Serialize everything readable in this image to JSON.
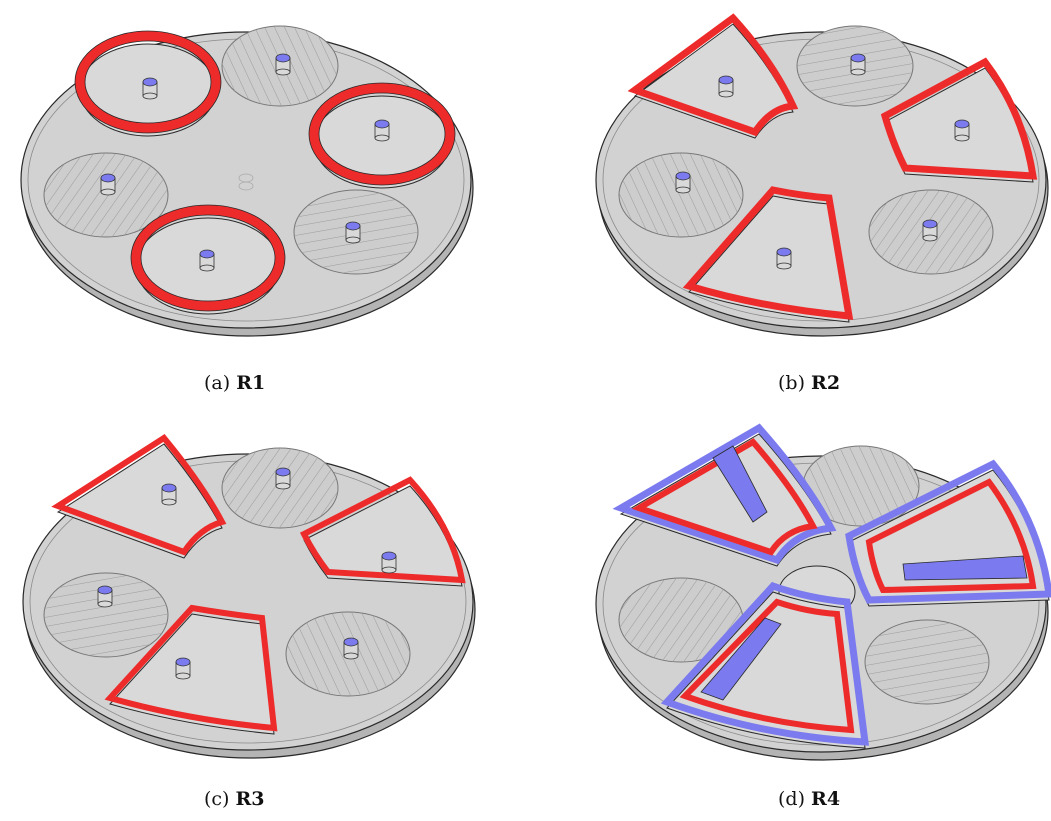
{
  "figure": {
    "panels": [
      {
        "id": "a",
        "label": "(a)",
        "name": "R1"
      },
      {
        "id": "b",
        "label": "(b)",
        "name": "R2"
      },
      {
        "id": "c",
        "label": "(c)",
        "name": "R3"
      },
      {
        "id": "d",
        "label": "(d)",
        "name": "R4"
      }
    ]
  },
  "colors": {
    "base": "#d2d2d2",
    "base_side": "#b4b4b4",
    "outline": "#2a2a2a",
    "red_wall": "#ee2b2b",
    "blue_accent": "#7b7bef",
    "hatch_fill": "#cdcdcd",
    "hatch_line": "#9a9a9a"
  }
}
